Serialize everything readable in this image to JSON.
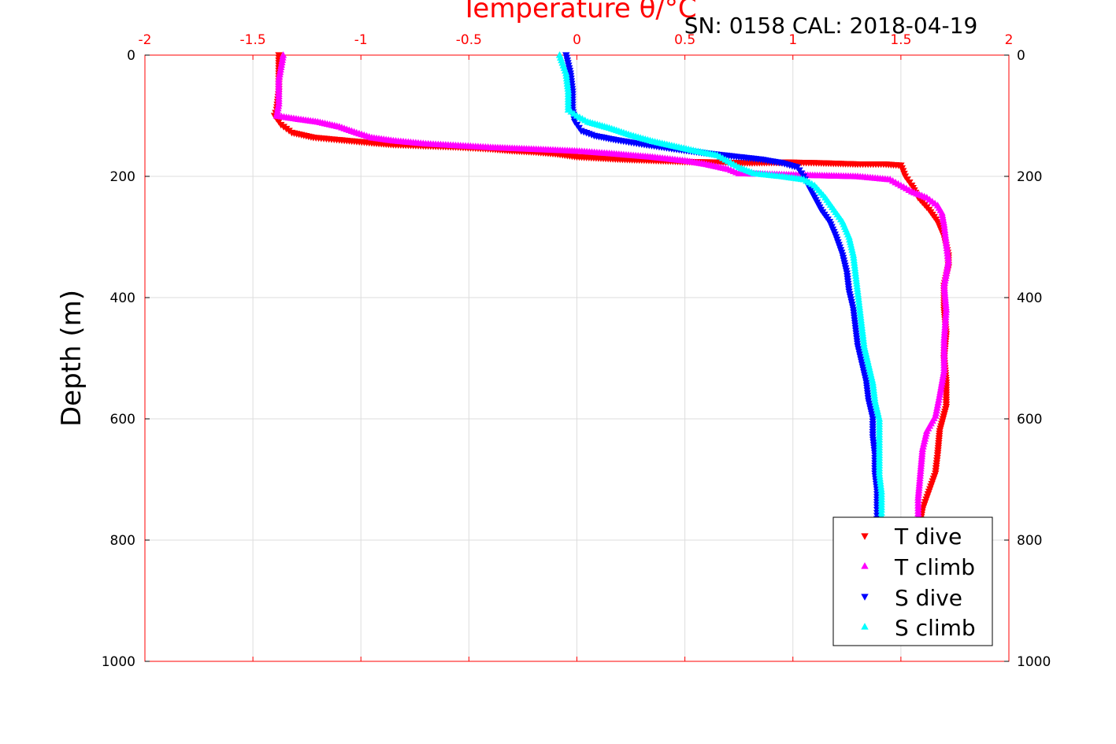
{
  "chart_data": {
    "type": "scatter",
    "title_temperature": "Temperature θ/°C",
    "title_sn": "SN: 0158  CAL: 2018-04-19",
    "ylabel": "Depth (m)",
    "xlim": [
      -2,
      2
    ],
    "ylim": [
      0,
      1000
    ],
    "y_reversed": true,
    "x_ticks": [
      "-2",
      "-1.5",
      "-1",
      "-0.5",
      "0",
      "0.5",
      "1",
      "1.5",
      "2"
    ],
    "y_ticks": [
      "0",
      "200",
      "400",
      "600",
      "800",
      "1000"
    ],
    "grid": true,
    "legend_position": "bottom-right",
    "legend": [
      "T dive",
      "T climb",
      "S dive",
      "S climb"
    ],
    "colors": {
      "t_dive": "#ff0000",
      "t_climb": "#ff00ff",
      "s_dive": "#0000ff",
      "s_climb": "#00ffff",
      "axis": "#ff0000",
      "grid": "#dddddd"
    },
    "series": [
      {
        "name": "T dive",
        "marker": "triangle-down",
        "color": "#ff0000",
        "points": [
          [
            -1.38,
            0
          ],
          [
            -1.38,
            30
          ],
          [
            -1.38,
            60
          ],
          [
            -1.39,
            90
          ],
          [
            -1.4,
            100
          ],
          [
            -1.37,
            115
          ],
          [
            -1.32,
            128
          ],
          [
            -1.22,
            136
          ],
          [
            -1.1,
            140
          ],
          [
            -0.95,
            145
          ],
          [
            -0.85,
            148
          ],
          [
            -0.7,
            150
          ],
          [
            -0.55,
            152
          ],
          [
            -0.4,
            155
          ],
          [
            -0.3,
            158
          ],
          [
            -0.2,
            160
          ],
          [
            -0.1,
            163
          ],
          [
            0.0,
            168
          ],
          [
            0.2,
            172
          ],
          [
            0.5,
            176
          ],
          [
            0.8,
            178
          ],
          [
            0.98,
            177
          ],
          [
            1.12,
            178
          ],
          [
            1.3,
            180
          ],
          [
            1.42,
            180
          ],
          [
            1.5,
            182
          ],
          [
            1.52,
            200
          ],
          [
            1.55,
            215
          ],
          [
            1.58,
            235
          ],
          [
            1.63,
            255
          ],
          [
            1.67,
            275
          ],
          [
            1.7,
            300
          ],
          [
            1.72,
            330
          ],
          [
            1.72,
            350
          ],
          [
            1.7,
            380
          ],
          [
            1.7,
            420
          ],
          [
            1.71,
            460
          ],
          [
            1.7,
            500
          ],
          [
            1.71,
            540
          ],
          [
            1.71,
            580
          ],
          [
            1.68,
            620
          ],
          [
            1.67,
            660
          ],
          [
            1.66,
            690
          ],
          [
            1.63,
            720
          ],
          [
            1.6,
            750
          ],
          [
            1.59,
            770
          ]
        ]
      },
      {
        "name": "T climb",
        "marker": "triangle-up",
        "color": "#ff00ff",
        "points": [
          [
            -1.36,
            0
          ],
          [
            -1.38,
            40
          ],
          [
            -1.38,
            80
          ],
          [
            -1.39,
            100
          ],
          [
            -1.3,
            105
          ],
          [
            -1.2,
            110
          ],
          [
            -1.1,
            118
          ],
          [
            -1.02,
            128
          ],
          [
            -0.95,
            136
          ],
          [
            -0.85,
            141
          ],
          [
            -0.7,
            146
          ],
          [
            -0.55,
            149
          ],
          [
            -0.4,
            152
          ],
          [
            -0.2,
            155
          ],
          [
            0.0,
            158
          ],
          [
            0.15,
            162
          ],
          [
            0.35,
            168
          ],
          [
            0.5,
            174
          ],
          [
            0.6,
            180
          ],
          [
            0.7,
            188
          ],
          [
            0.75,
            195
          ],
          [
            1.3,
            200
          ],
          [
            1.45,
            205
          ],
          [
            1.5,
            215
          ],
          [
            1.55,
            225
          ],
          [
            1.62,
            235
          ],
          [
            1.67,
            248
          ],
          [
            1.69,
            260
          ],
          [
            1.7,
            280
          ],
          [
            1.71,
            310
          ],
          [
            1.72,
            340
          ],
          [
            1.7,
            380
          ],
          [
            1.71,
            420
          ],
          [
            1.7,
            470
          ],
          [
            1.7,
            520
          ],
          [
            1.68,
            560
          ],
          [
            1.66,
            595
          ],
          [
            1.62,
            620
          ],
          [
            1.6,
            650
          ],
          [
            1.59,
            690
          ],
          [
            1.58,
            730
          ],
          [
            1.58,
            765
          ]
        ]
      },
      {
        "name": "S dive",
        "marker": "triangle-down",
        "color": "#0000ff",
        "points": [
          [
            -0.05,
            0
          ],
          [
            -0.03,
            30
          ],
          [
            -0.02,
            60
          ],
          [
            -0.02,
            90
          ],
          [
            -0.01,
            110
          ],
          [
            0.02,
            125
          ],
          [
            0.08,
            133
          ],
          [
            0.18,
            140
          ],
          [
            0.3,
            147
          ],
          [
            0.45,
            155
          ],
          [
            0.6,
            162
          ],
          [
            0.75,
            168
          ],
          [
            0.85,
            172
          ],
          [
            0.95,
            178
          ],
          [
            1.02,
            185
          ],
          [
            1.05,
            200
          ],
          [
            1.07,
            215
          ],
          [
            1.1,
            235
          ],
          [
            1.13,
            255
          ],
          [
            1.17,
            275
          ],
          [
            1.2,
            300
          ],
          [
            1.23,
            330
          ],
          [
            1.25,
            360
          ],
          [
            1.26,
            390
          ],
          [
            1.28,
            420
          ],
          [
            1.29,
            450
          ],
          [
            1.3,
            480
          ],
          [
            1.32,
            510
          ],
          [
            1.34,
            540
          ],
          [
            1.35,
            570
          ],
          [
            1.37,
            600
          ],
          [
            1.37,
            630
          ],
          [
            1.38,
            660
          ],
          [
            1.38,
            690
          ],
          [
            1.39,
            720
          ],
          [
            1.39,
            750
          ],
          [
            1.39,
            765
          ]
        ]
      },
      {
        "name": "S climb",
        "marker": "triangle-up",
        "color": "#00ffff",
        "points": [
          [
            -0.08,
            0
          ],
          [
            -0.05,
            30
          ],
          [
            -0.04,
            60
          ],
          [
            -0.04,
            90
          ],
          [
            0.0,
            100
          ],
          [
            0.05,
            110
          ],
          [
            0.15,
            120
          ],
          [
            0.25,
            132
          ],
          [
            0.35,
            142
          ],
          [
            0.45,
            150
          ],
          [
            0.55,
            158
          ],
          [
            0.65,
            165
          ],
          [
            0.7,
            175
          ],
          [
            0.75,
            185
          ],
          [
            0.82,
            195
          ],
          [
            0.95,
            200
          ],
          [
            1.05,
            205
          ],
          [
            1.1,
            215
          ],
          [
            1.15,
            235
          ],
          [
            1.19,
            255
          ],
          [
            1.23,
            275
          ],
          [
            1.26,
            300
          ],
          [
            1.28,
            330
          ],
          [
            1.29,
            360
          ],
          [
            1.3,
            390
          ],
          [
            1.31,
            420
          ],
          [
            1.32,
            450
          ],
          [
            1.33,
            480
          ],
          [
            1.35,
            510
          ],
          [
            1.37,
            540
          ],
          [
            1.38,
            570
          ],
          [
            1.4,
            600
          ],
          [
            1.4,
            630
          ],
          [
            1.4,
            660
          ],
          [
            1.4,
            690
          ],
          [
            1.41,
            720
          ],
          [
            1.41,
            750
          ],
          [
            1.41,
            765
          ]
        ]
      }
    ]
  }
}
